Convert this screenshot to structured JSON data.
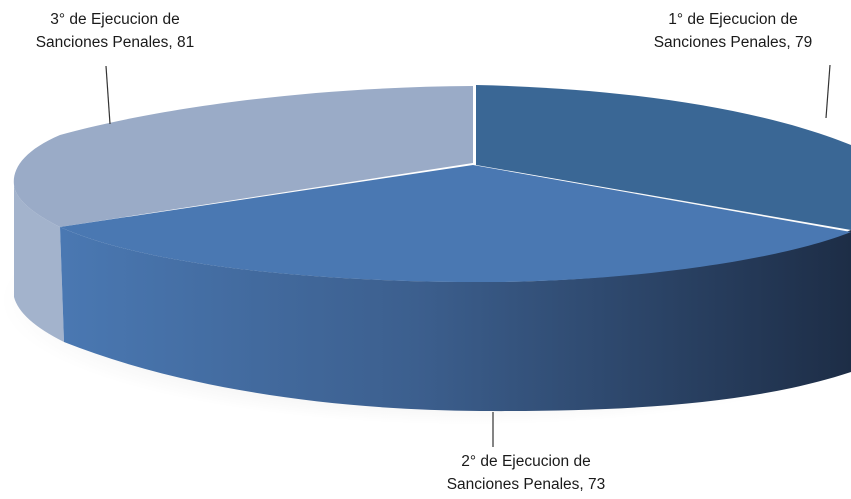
{
  "chart_data": {
    "type": "pie",
    "style": "3d-exploded-cut-off",
    "slices": [
      {
        "label_line1": "1° de Ejecucion de",
        "label_line2": "Sanciones Penales, 79",
        "value": 79,
        "color": "#3a6795"
      },
      {
        "label_line1": "2° de Ejecucion de",
        "label_line2": "Sanciones Penales, 73",
        "value": 73,
        "color": "#4a78b2"
      },
      {
        "label_line1": "3° de Ejecucion de",
        "label_line2": "Sanciones Penales, 81",
        "value": 81,
        "color": "#9aabc7"
      }
    ],
    "legend": "none"
  }
}
